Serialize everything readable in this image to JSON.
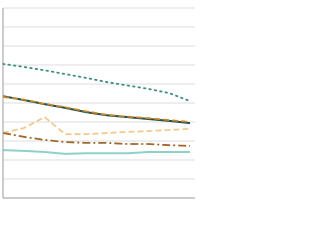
{
  "chart_data": {
    "type": "line",
    "x": [
      0,
      1,
      2,
      3,
      4,
      5,
      6,
      7,
      8,
      9
    ],
    "xlim": [
      0,
      9
    ],
    "ylim": [
      0,
      50
    ],
    "yticks": [
      0,
      5,
      10,
      15,
      20,
      25,
      30,
      35,
      40,
      45,
      50
    ],
    "grid": true,
    "series": [
      {
        "color": "#3a8f7d",
        "style": "dotted",
        "values": [
          35.3,
          34.5,
          33.6,
          32.6,
          31.6,
          30.5,
          29.6,
          28.7,
          27.6,
          25.5
        ]
      },
      {
        "color": "#1f4f46",
        "style": "solid",
        "values": [
          26.8,
          25.8,
          24.7,
          23.7,
          22.6,
          21.8,
          21.3,
          20.8,
          20.3,
          19.7
        ]
      },
      {
        "color": "#c8832b",
        "style": "dashed",
        "values": [
          26.6,
          25.9,
          24.8,
          23.9,
          22.8,
          21.9,
          21.4,
          21.0,
          20.5,
          20.0
        ]
      },
      {
        "color": "#f2c98f",
        "style": "dashed",
        "values": [
          17.1,
          18.4,
          21.3,
          16.8,
          16.8,
          17.1,
          17.4,
          17.6,
          17.9,
          18.2
        ]
      },
      {
        "color": "#a0662a",
        "style": "dashdot",
        "values": [
          17.1,
          16.1,
          15.3,
          14.7,
          14.5,
          14.5,
          14.2,
          14.2,
          13.9,
          13.7
        ]
      },
      {
        "color": "#8fd0c8",
        "style": "solid",
        "values": [
          12.6,
          12.4,
          12.1,
          11.6,
          11.8,
          11.8,
          11.8,
          12.1,
          12.1,
          12.1
        ]
      }
    ]
  }
}
